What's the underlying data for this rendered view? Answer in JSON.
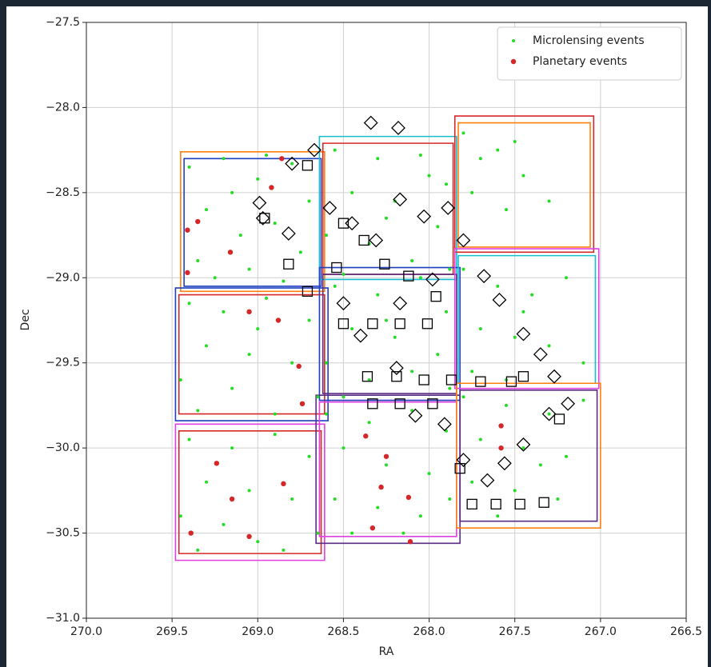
{
  "chart_data": {
    "type": "scatter",
    "x_label": "RA",
    "y_label": "Dec",
    "xlim": [
      270,
      266.5
    ],
    "ylim": [
      -31,
      -27.5
    ],
    "xticks": [
      {
        "value": 270,
        "label": "270.0"
      },
      {
        "value": 269.5,
        "label": "269.5"
      },
      {
        "value": 269,
        "label": "269.0"
      },
      {
        "value": 268.5,
        "label": "268.5"
      },
      {
        "value": 268,
        "label": "268.0"
      },
      {
        "value": 267.5,
        "label": "267.5"
      },
      {
        "value": 267,
        "label": "267.0"
      },
      {
        "value": 266.5,
        "label": "266.5"
      }
    ],
    "yticks": [
      {
        "value": -31,
        "label": "−31.0"
      },
      {
        "value": -30.5,
        "label": "−30.5"
      },
      {
        "value": -30,
        "label": "−30.0"
      },
      {
        "value": -29.5,
        "label": "−29.5"
      },
      {
        "value": -29,
        "label": "−29.0"
      },
      {
        "value": -28.5,
        "label": "−28.5"
      },
      {
        "value": -28,
        "label": "−28.0"
      },
      {
        "value": -27.5,
        "label": "−27.5"
      }
    ],
    "grid": true,
    "legend": "upper right",
    "fields": [
      {
        "color": "#ff7f0e",
        "x": [
          269.45,
          268.61,
          268.61,
          269.45
        ],
        "y": [
          -28.26,
          -28.26,
          -29.08,
          -29.08
        ]
      },
      {
        "color": "#1f3fbf",
        "x": [
          269.43,
          268.63,
          268.63,
          269.43
        ],
        "y": [
          -28.3,
          -28.3,
          -29.05,
          -29.05
        ]
      },
      {
        "color": "#17becf",
        "x": [
          268.64,
          267.84,
          267.84,
          268.64
        ],
        "y": [
          -28.17,
          -28.17,
          -29.01,
          -29.01
        ]
      },
      {
        "color": "#d62728",
        "x": [
          268.62,
          267.86,
          267.86,
          268.62
        ],
        "y": [
          -28.21,
          -28.21,
          -28.98,
          -28.98
        ]
      },
      {
        "color": "#d62728",
        "x": [
          267.85,
          267.04,
          267.04,
          267.85
        ],
        "y": [
          -28.05,
          -28.05,
          -28.85,
          -28.85
        ]
      },
      {
        "color": "#ff7f0e",
        "x": [
          267.83,
          267.06,
          267.06,
          267.83
        ],
        "y": [
          -28.09,
          -28.09,
          -28.82,
          -28.82
        ]
      },
      {
        "color": "#1f3fbf",
        "x": [
          269.48,
          268.59,
          268.59,
          269.48
        ],
        "y": [
          -29.06,
          -29.06,
          -29.84,
          -29.84
        ]
      },
      {
        "color": "#d62728",
        "x": [
          269.46,
          268.61,
          268.61,
          269.46
        ],
        "y": [
          -29.1,
          -29.1,
          -29.8,
          -29.8
        ]
      },
      {
        "color": "#1f3fbf",
        "x": [
          268.64,
          267.82,
          267.82,
          268.64
        ],
        "y": [
          -28.94,
          -28.94,
          -29.72,
          -29.72
        ]
      },
      {
        "color": "#5b2c83",
        "x": [
          268.62,
          267.84,
          267.84,
          268.62
        ],
        "y": [
          -28.98,
          -28.98,
          -29.68,
          -29.68
        ]
      },
      {
        "color": "#e040e0",
        "x": [
          267.85,
          267.01,
          267.01,
          267.85
        ],
        "y": [
          -28.83,
          -28.83,
          -29.65,
          -29.65
        ]
      },
      {
        "color": "#17becf",
        "x": [
          267.83,
          267.03,
          267.03,
          267.83
        ],
        "y": [
          -28.87,
          -28.87,
          -29.62,
          -29.62
        ]
      },
      {
        "color": "#e040e0",
        "x": [
          269.48,
          268.61,
          268.61,
          269.48
        ],
        "y": [
          -29.86,
          -29.86,
          -30.66,
          -30.66
        ]
      },
      {
        "color": "#d62728",
        "x": [
          269.46,
          268.63,
          268.63,
          269.46
        ],
        "y": [
          -29.9,
          -29.9,
          -30.62,
          -30.62
        ]
      },
      {
        "color": "#5b2c83",
        "x": [
          268.66,
          267.82,
          267.82,
          268.66
        ],
        "y": [
          -29.69,
          -29.69,
          -30.56,
          -30.56
        ]
      },
      {
        "color": "#e040e0",
        "x": [
          268.64,
          267.84,
          267.84,
          268.64
        ],
        "y": [
          -29.73,
          -29.73,
          -30.52,
          -30.52
        ]
      },
      {
        "color": "#ff7f0e",
        "x": [
          267.84,
          267.0,
          267.0,
          267.84
        ],
        "y": [
          -29.62,
          -29.62,
          -30.47,
          -30.47
        ]
      },
      {
        "color": "#5b2c83",
        "x": [
          267.82,
          267.02,
          267.02,
          267.82
        ],
        "y": [
          -29.66,
          -29.66,
          -30.43,
          -30.43
        ]
      }
    ],
    "series": [
      {
        "name": "Microlensing events",
        "color": "#22dd22",
        "marker": "dot",
        "x": [
          269.4,
          269.2,
          269.0,
          268.8,
          268.7,
          269.3,
          269.1,
          268.9,
          269.35,
          269.05,
          268.75,
          269.25,
          268.85,
          269.15,
          268.95,
          268.55,
          268.3,
          268.05,
          267.9,
          268.45,
          268.2,
          267.95,
          268.6,
          268.35,
          268.1,
          267.88,
          268.5,
          268.25,
          268.0,
          267.8,
          267.6,
          267.45,
          267.75,
          267.55,
          267.3,
          267.7,
          267.5,
          269.4,
          269.2,
          268.95,
          268.7,
          269.3,
          269.05,
          268.8,
          269.45,
          269.15,
          268.65,
          269.35,
          268.9,
          269.0,
          268.55,
          268.3,
          268.05,
          267.9,
          268.45,
          268.2,
          267.95,
          268.6,
          268.35,
          268.1,
          267.88,
          268.5,
          268.25,
          267.8,
          267.6,
          267.4,
          267.2,
          267.7,
          267.5,
          267.3,
          267.75,
          267.55,
          267.1,
          267.45,
          269.4,
          269.15,
          268.9,
          268.7,
          269.3,
          269.05,
          268.8,
          269.45,
          269.2,
          268.65,
          269.0,
          268.85,
          269.35,
          268.6,
          268.35,
          268.1,
          267.9,
          268.5,
          268.25,
          268.0,
          268.55,
          268.3,
          268.05,
          267.88,
          268.45,
          268.15,
          267.8,
          267.55,
          267.3,
          267.1,
          267.7,
          267.45,
          267.2,
          267.75,
          267.5,
          267.25,
          267.6,
          267.35
        ],
        "y": [
          -28.35,
          -28.3,
          -28.42,
          -28.33,
          -28.55,
          -28.6,
          -28.75,
          -28.68,
          -28.9,
          -28.95,
          -28.85,
          -29.0,
          -29.02,
          -28.5,
          -28.28,
          -28.25,
          -28.3,
          -28.28,
          -28.45,
          -28.5,
          -28.55,
          -28.7,
          -28.75,
          -28.8,
          -28.9,
          -28.95,
          -28.98,
          -28.65,
          -28.4,
          -28.15,
          -28.25,
          -28.4,
          -28.5,
          -28.6,
          -28.55,
          -28.3,
          -28.2,
          -29.15,
          -29.2,
          -29.12,
          -29.25,
          -29.4,
          -29.45,
          -29.5,
          -29.6,
          -29.65,
          -29.7,
          -29.78,
          -29.8,
          -29.3,
          -29.05,
          -29.1,
          -29.0,
          -29.2,
          -29.3,
          -29.35,
          -29.45,
          -29.5,
          -29.6,
          -29.55,
          -29.65,
          -29.7,
          -29.25,
          -28.95,
          -29.05,
          -29.1,
          -29.0,
          -29.3,
          -29.35,
          -29.4,
          -29.55,
          -29.6,
          -29.5,
          -29.2,
          -29.95,
          -30.0,
          -29.92,
          -30.05,
          -30.2,
          -30.25,
          -30.3,
          -30.4,
          -30.45,
          -30.5,
          -30.55,
          -30.6,
          -30.6,
          -29.8,
          -29.85,
          -29.78,
          -29.9,
          -30.0,
          -30.1,
          -30.15,
          -30.3,
          -30.35,
          -30.4,
          -30.3,
          -30.5,
          -30.5,
          -29.7,
          -29.75,
          -29.8,
          -29.72,
          -29.95,
          -30.0,
          -30.05,
          -30.2,
          -30.25,
          -30.3,
          -30.4,
          -30.1
        ]
      },
      {
        "name": "Planetary events",
        "color": "#d62728",
        "marker": "circle",
        "x": [
          269.41,
          269.35,
          269.16,
          268.92,
          268.86,
          269.41,
          269.05,
          268.88,
          268.76,
          268.74,
          269.24,
          269.15,
          268.85,
          269.39,
          269.05,
          268.37,
          268.25,
          268.28,
          268.12,
          268.33,
          268.11,
          267.58,
          267.58
        ],
        "y": [
          -28.72,
          -28.67,
          -28.85,
          -28.47,
          -28.3,
          -28.97,
          -29.2,
          -29.25,
          -29.52,
          -29.74,
          -30.09,
          -30.3,
          -30.21,
          -30.5,
          -30.52,
          -29.93,
          -30.05,
          -30.23,
          -30.29,
          -30.47,
          -30.55,
          -30.0,
          -29.87
        ]
      },
      {
        "color": "#000000",
        "marker": "square",
        "x": [
          268.71,
          268.96,
          268.82,
          268.71,
          268.5,
          268.38,
          268.26,
          268.12,
          267.96,
          268.5,
          268.33,
          268.17,
          268.01,
          268.36,
          268.19,
          268.03,
          267.87,
          267.7,
          267.52,
          268.33,
          268.17,
          267.98,
          267.75,
          267.61,
          267.47,
          267.33,
          267.82,
          267.24,
          267.45,
          268.54
        ],
        "y": [
          -28.34,
          -28.65,
          -28.92,
          -29.08,
          -28.68,
          -28.78,
          -28.92,
          -28.99,
          -29.11,
          -29.27,
          -29.27,
          -29.27,
          -29.27,
          -29.58,
          -29.58,
          -29.6,
          -29.6,
          -29.61,
          -29.61,
          -29.74,
          -29.74,
          -29.74,
          -30.33,
          -30.33,
          -30.33,
          -30.32,
          -30.12,
          -29.83,
          -29.58,
          -28.94
        ]
      },
      {
        "color": "#000000",
        "marker": "diamond",
        "x": [
          268.34,
          268.18,
          268.67,
          268.8,
          268.99,
          268.97,
          268.82,
          268.58,
          268.45,
          268.31,
          268.17,
          268.03,
          267.89,
          267.8,
          267.68,
          267.59,
          267.45,
          267.35,
          267.27,
          267.19,
          267.3,
          267.45,
          267.56,
          267.66,
          267.8,
          267.91,
          268.08,
          268.19,
          268.4,
          268.5,
          268.17,
          267.98
        ],
        "y": [
          -28.09,
          -28.12,
          -28.25,
          -28.33,
          -28.56,
          -28.65,
          -28.74,
          -28.59,
          -28.68,
          -28.78,
          -28.54,
          -28.64,
          -28.59,
          -28.78,
          -28.99,
          -29.13,
          -29.33,
          -29.45,
          -29.58,
          -29.74,
          -29.8,
          -29.98,
          -30.09,
          -30.19,
          -30.07,
          -29.86,
          -29.81,
          -29.53,
          -29.34,
          -29.15,
          -29.15,
          -29.01
        ]
      }
    ]
  }
}
